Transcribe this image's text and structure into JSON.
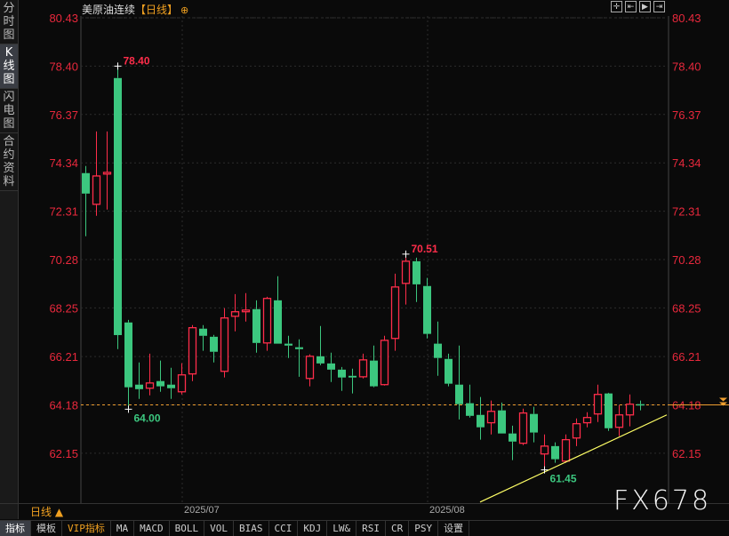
{
  "sidebar": {
    "tabs": [
      {
        "label": "分时图",
        "active": false
      },
      {
        "label": "K线图",
        "active": true
      },
      {
        "label": "闪电图",
        "active": false
      },
      {
        "label": "合约资料",
        "active": false
      }
    ]
  },
  "header": {
    "instrument": "美原油连续",
    "period_bracket": "【日线】",
    "icon": "crosshair-circle-icon"
  },
  "tools": [
    {
      "icon": "crosshair-icon",
      "glyph": "✛"
    },
    {
      "icon": "range-icon",
      "glyph": "⇤"
    },
    {
      "icon": "play-range-icon",
      "glyph": "▶"
    },
    {
      "icon": "expand-right-icon",
      "glyph": "⇥"
    }
  ],
  "period_selector": "日线 ▲",
  "toolbar": [
    {
      "label": "指标",
      "active": true
    },
    {
      "label": "模板"
    },
    {
      "label": "VIP指标",
      "vip": true
    },
    {
      "label": "MA"
    },
    {
      "label": "MACD"
    },
    {
      "label": "BOLL"
    },
    {
      "label": "VOL"
    },
    {
      "label": "BIAS"
    },
    {
      "label": "CCI"
    },
    {
      "label": "KDJ"
    },
    {
      "label": "LW&"
    },
    {
      "label": "RSI"
    },
    {
      "label": "CR"
    },
    {
      "label": "PSY"
    },
    {
      "label": "设置"
    }
  ],
  "watermark": "FX678",
  "colors": {
    "up": "#ff2d4a",
    "down": "#3cc77f",
    "axis_label": "#e8283c",
    "last_price_line": "#f0a030",
    "trendline": "#ffff66",
    "background": "#0a0a0a"
  },
  "chart_data": {
    "type": "candlestick",
    "y_ticks": [
      80.43,
      78.4,
      76.37,
      74.34,
      72.31,
      70.28,
      68.25,
      66.21,
      64.18,
      62.15
    ],
    "ylim": [
      59.9,
      80.43
    ],
    "x_ticks": [
      {
        "index": 9,
        "label": "2025/07"
      },
      {
        "index": 32,
        "label": "2025/08"
      }
    ],
    "last_price": 64.18,
    "annotations": [
      {
        "index": 3,
        "price": 78.4,
        "label": "78.40",
        "color": "red"
      },
      {
        "index": 4,
        "price": 64.0,
        "label": "64.00",
        "color": "green"
      },
      {
        "index": 30,
        "price": 70.51,
        "label": "70.51",
        "color": "red"
      },
      {
        "index": 43,
        "price": 61.45,
        "label": "61.45",
        "color": "green"
      }
    ],
    "trendline": [
      {
        "index": 37,
        "price": 60.1
      },
      {
        "index": 54.5,
        "price": 63.76
      }
    ],
    "candles": [
      [
        73.91,
        73.05,
        74.21,
        71.26
      ],
      [
        72.6,
        73.79,
        75.66,
        72.12
      ],
      [
        73.87,
        73.94,
        75.66,
        72.38
      ],
      [
        77.9,
        67.11,
        78.4,
        66.52
      ],
      [
        67.64,
        64.92,
        67.75,
        64.0
      ],
      [
        65.03,
        64.84,
        65.96,
        64.43
      ],
      [
        64.88,
        65.1,
        66.33,
        64.58
      ],
      [
        65.18,
        64.96,
        66.04,
        64.73
      ],
      [
        65.03,
        64.88,
        65.74,
        64.43
      ],
      [
        64.73,
        65.44,
        65.93,
        64.62
      ],
      [
        65.48,
        67.42,
        67.53,
        65.18
      ],
      [
        67.38,
        67.08,
        67.53,
        66.45
      ],
      [
        67.04,
        66.41,
        67.12,
        65.96
      ],
      [
        65.59,
        67.83,
        68.24,
        65.33
      ],
      [
        67.9,
        68.09,
        68.83,
        67.27
      ],
      [
        68.09,
        68.16,
        68.87,
        67.68
      ],
      [
        68.2,
        66.78,
        68.57,
        66.37
      ],
      [
        66.78,
        68.65,
        68.72,
        66.45
      ],
      [
        68.57,
        66.75,
        69.58,
        66.75
      ],
      [
        66.75,
        66.67,
        67.08,
        66.15
      ],
      [
        66.6,
        66.52,
        66.93,
        65.36
      ],
      [
        65.29,
        66.22,
        66.3,
        64.96
      ],
      [
        66.22,
        65.92,
        67.49,
        65.85
      ],
      [
        65.92,
        65.66,
        66.37,
        65.14
      ],
      [
        65.66,
        65.33,
        65.77,
        64.77
      ],
      [
        65.4,
        65.33,
        65.7,
        64.66
      ],
      [
        65.36,
        66.07,
        66.33,
        65.29
      ],
      [
        66.04,
        64.96,
        66.67,
        64.92
      ],
      [
        65.03,
        66.89,
        67.08,
        64.99
      ],
      [
        66.97,
        69.13,
        69.69,
        66.45
      ],
      [
        69.28,
        70.21,
        70.51,
        68.39
      ],
      [
        70.21,
        69.24,
        70.36,
        68.5
      ],
      [
        69.17,
        67.16,
        69.51,
        66.97
      ],
      [
        66.75,
        66.15,
        67.68,
        65.4
      ],
      [
        66.11,
        65.07,
        66.33,
        64.96
      ],
      [
        65.03,
        64.21,
        66.67,
        63.57
      ],
      [
        64.25,
        63.72,
        65.03,
        63.65
      ],
      [
        63.76,
        63.24,
        64.51,
        62.72
      ],
      [
        63.43,
        63.91,
        64.36,
        62.94
      ],
      [
        63.95,
        62.98,
        64.28,
        62.98
      ],
      [
        62.98,
        62.64,
        63.31,
        61.86
      ],
      [
        62.57,
        63.84,
        64.02,
        62.49
      ],
      [
        63.8,
        63.02,
        64.1,
        62.61
      ],
      [
        62.12,
        62.45,
        62.94,
        61.45
      ],
      [
        62.45,
        61.9,
        62.61,
        61.75
      ],
      [
        61.82,
        62.72,
        62.94,
        61.75
      ],
      [
        62.79,
        63.39,
        63.61,
        62.45
      ],
      [
        63.43,
        63.65,
        63.87,
        63.24
      ],
      [
        63.8,
        64.62,
        65.03,
        63.46
      ],
      [
        64.66,
        63.2,
        64.69,
        63.09
      ],
      [
        63.24,
        63.76,
        64.17,
        62.87
      ],
      [
        63.76,
        64.21,
        64.62,
        63.28
      ],
      [
        64.21,
        64.18,
        64.36,
        63.95
      ]
    ],
    "candle_fields": [
      "open",
      "close",
      "high",
      "low"
    ]
  }
}
